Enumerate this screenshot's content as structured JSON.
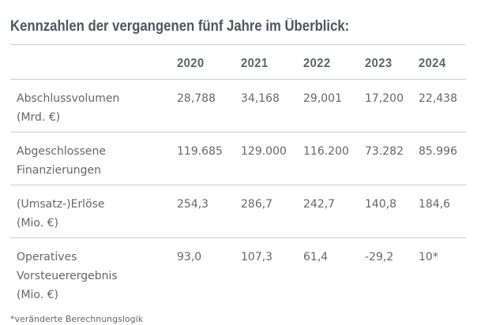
{
  "title": "Kennzahlen der vergangenen fünf Jahre im Überblick:",
  "table": {
    "columns": [
      "2020",
      "2021",
      "2022",
      "2023",
      "2024"
    ],
    "rows": [
      {
        "label_lines": [
          "Abschlussvolumen",
          "(Mrd. €)"
        ],
        "values": [
          "28,788",
          "34,168",
          "29,001",
          "17,200",
          "22,438"
        ]
      },
      {
        "label_lines": [
          "Abgeschlossene",
          "Finanzierungen"
        ],
        "values": [
          "119.685",
          "129.000",
          "116.200",
          "73.282",
          "85.996"
        ]
      },
      {
        "label_lines": [
          "(Umsatz-)Erlöse",
          "(Mio. €)"
        ],
        "values": [
          "254,3",
          "286,7",
          "242,7",
          "140,8",
          "184,6"
        ]
      },
      {
        "label_lines": [
          "Operatives",
          "Vorsteuerergebnis",
          "(Mio. €)"
        ],
        "values": [
          "93,0",
          "107,3",
          "61,4",
          "-29,2",
          "10*"
        ]
      }
    ]
  },
  "footnote": "*veränderte Berechnungslogik",
  "colors": {
    "title_text": "#4e565e",
    "header_text": "#5a626b",
    "body_text": "#666666",
    "divider_line": "#cccccc",
    "background": "#ffffff"
  },
  "chart_data": {
    "type": "table",
    "title": "Kennzahlen der vergangenen fünf Jahre im Überblick:",
    "categories": [
      "2020",
      "2021",
      "2022",
      "2023",
      "2024"
    ],
    "series": [
      {
        "name": "Abschlussvolumen (Mrd. €)",
        "values": [
          28.788,
          34.168,
          29.001,
          17.2,
          22.438
        ]
      },
      {
        "name": "Abgeschlossene Finanzierungen",
        "values": [
          119685,
          129000,
          116200,
          73282,
          85996
        ]
      },
      {
        "name": "(Umsatz-)Erlöse (Mio. €)",
        "values": [
          254.3,
          286.7,
          242.7,
          140.8,
          184.6
        ]
      },
      {
        "name": "Operatives Vorsteuerergebnis (Mio. €)",
        "values": [
          93.0,
          107.3,
          61.4,
          -29.2,
          10
        ]
      }
    ],
    "annotations": [
      "*veränderte Berechnungslogik (gilt für Wert 10* in 2024)"
    ],
    "layout": {
      "grid": "horizontal-dividers-only",
      "header_position": "top",
      "label_column_position": "left"
    }
  }
}
